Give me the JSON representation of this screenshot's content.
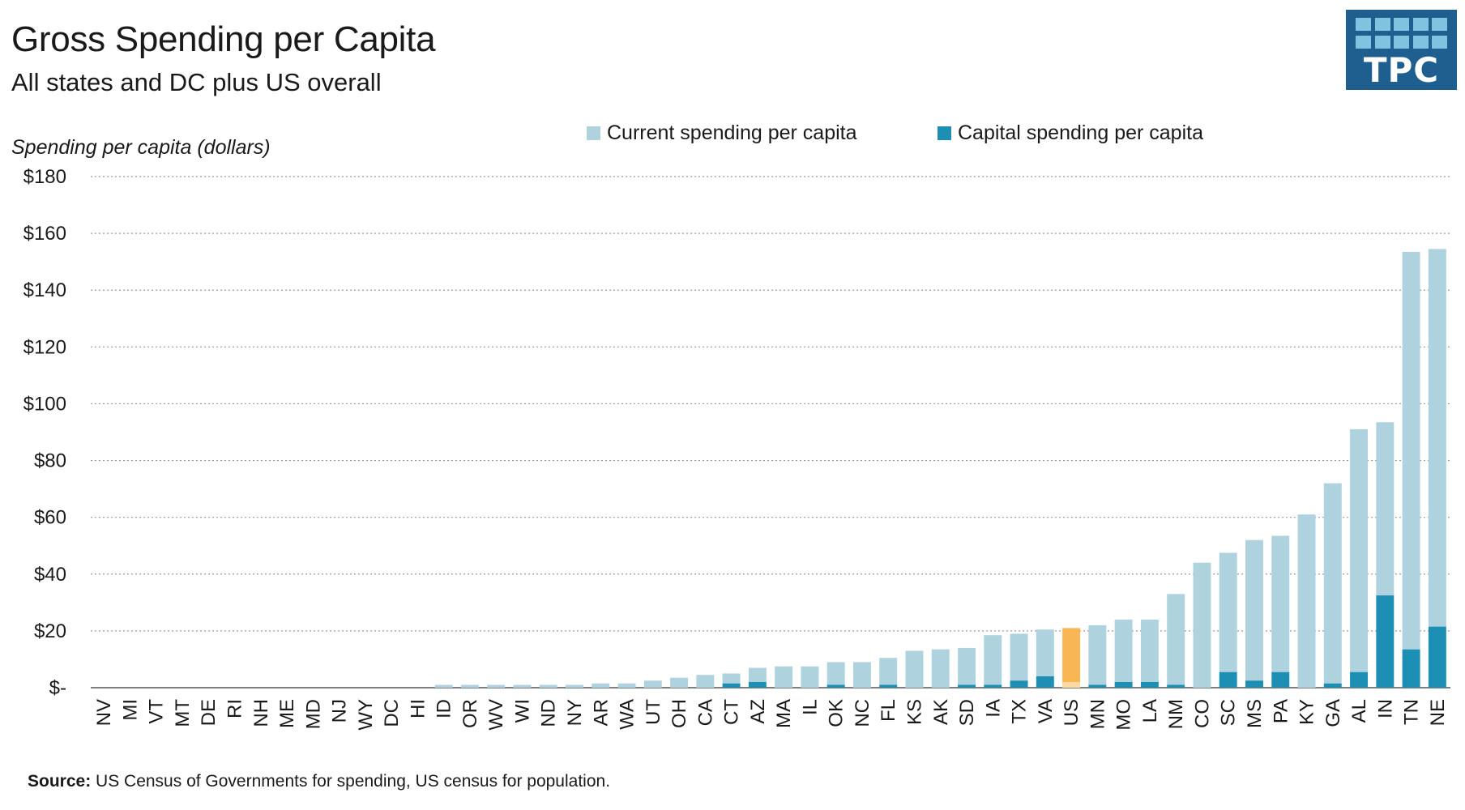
{
  "header": {
    "title": "Gross Spending per Capita",
    "subtitle": "All states and DC plus US overall",
    "logo_text": "TPC"
  },
  "legend": {
    "current_label": "Current spending per capita",
    "capital_label": "Capital spending per capita"
  },
  "source": {
    "label": "Source:",
    "text": " US Census of Governments for spending, US census for population."
  },
  "colors": {
    "current": "#afd3de",
    "capital": "#1d8fb5",
    "highlight": "#f9b654",
    "highlight_capital": "#fcd9a0",
    "grid": "#9a9a9a",
    "logo": "#1f5f8f"
  },
  "chart_data": {
    "type": "bar",
    "stacked": true,
    "title": "Gross Spending per Capita",
    "subtitle": "All states and DC plus US overall",
    "ylabel": "Spending per capita (dollars)",
    "xlabel": "",
    "ylim": [
      0,
      180
    ],
    "yticks": [
      0,
      20,
      40,
      60,
      80,
      100,
      120,
      140,
      160,
      180
    ],
    "ytick_labels": [
      "$-",
      "$20",
      "$40",
      "$60",
      "$80",
      "$100",
      "$120",
      "$140",
      "$160",
      "$180"
    ],
    "grid": true,
    "legend_position": "top",
    "highlight_category": "US",
    "categories": [
      "NV",
      "MI",
      "VT",
      "MT",
      "DE",
      "RI",
      "NH",
      "ME",
      "MD",
      "NJ",
      "WY",
      "DC",
      "HI",
      "ID",
      "OR",
      "WV",
      "WI",
      "ND",
      "NY",
      "AR",
      "WA",
      "UT",
      "OH",
      "CA",
      "CT",
      "AZ",
      "MA",
      "IL",
      "OK",
      "NC",
      "FL",
      "KS",
      "AK",
      "SD",
      "IA",
      "TX",
      "VA",
      "US",
      "MN",
      "MO",
      "LA",
      "NM",
      "CO",
      "SC",
      "MS",
      "PA",
      "KY",
      "GA",
      "AL",
      "IN",
      "TN",
      "NE"
    ],
    "series": [
      {
        "name": "Capital spending per capita",
        "values": [
          0,
          0,
          0,
          0,
          0,
          0,
          0,
          0,
          0,
          0,
          0,
          0,
          0,
          0,
          0,
          0,
          0,
          0,
          0,
          0,
          0,
          0,
          0,
          0,
          1.5,
          2,
          0,
          0,
          1,
          0,
          1,
          0,
          0,
          1,
          1,
          2.5,
          4,
          2,
          1,
          2,
          2,
          1,
          0,
          5.5,
          2.5,
          5.5,
          0,
          1.5,
          5.5,
          32.5,
          13.5,
          21.5
        ]
      },
      {
        "name": "Current spending per capita",
        "values": [
          0,
          0,
          0,
          0,
          0,
          0,
          0,
          0,
          0,
          0,
          0,
          0,
          0,
          1,
          1,
          1,
          1,
          1,
          1,
          1.5,
          1.5,
          2.5,
          3.5,
          4.5,
          3.5,
          5,
          7.5,
          7.5,
          8,
          9,
          9.5,
          13,
          13.5,
          13,
          17.5,
          16.5,
          16.5,
          19,
          21,
          22,
          22,
          32,
          44,
          42,
          49.5,
          48,
          61,
          70.5,
          85.5,
          61,
          140,
          133
        ]
      }
    ]
  }
}
